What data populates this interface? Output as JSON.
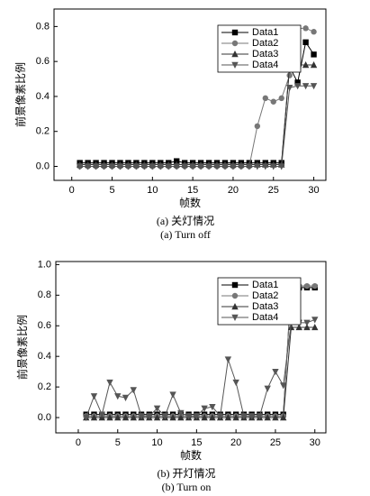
{
  "chart_data": [
    {
      "type": "line",
      "xlabel": "帧数",
      "ylabel": "前景像素比例",
      "captions": [
        "(a) 关灯情况",
        "(a) Turn off"
      ],
      "xlim": [
        -2.2,
        31.5
      ],
      "ylim": [
        -0.08,
        0.9
      ],
      "xticks": [
        0,
        5,
        10,
        15,
        20,
        25,
        30
      ],
      "yticks": [
        {
          "value": 0,
          "label": "0.0"
        },
        {
          "value": 0.2,
          "label": "0.2"
        },
        {
          "value": 0.4,
          "label": "0.4"
        },
        {
          "value": 0.6,
          "label": "0.6"
        },
        {
          "value": 0.8,
          "label": "0.8"
        }
      ],
      "legend": "upper right",
      "x": [
        1,
        2,
        3,
        4,
        5,
        6,
        7,
        8,
        9,
        10,
        11,
        12,
        13,
        14,
        15,
        16,
        17,
        18,
        19,
        20,
        21,
        22,
        23,
        24,
        25,
        26,
        27,
        28,
        29,
        30
      ],
      "series": [
        {
          "name": "Data1",
          "color": "#000000",
          "marker": "square",
          "values": [
            0.02,
            0.02,
            0.02,
            0.02,
            0.02,
            0.02,
            0.02,
            0.02,
            0.02,
            0.02,
            0.02,
            0.02,
            0.03,
            0.02,
            0.02,
            0.02,
            0.02,
            0.02,
            0.02,
            0.02,
            0.02,
            0.02,
            0.02,
            0.02,
            0.02,
            0.02,
            0.57,
            0.48,
            0.71,
            0.64
          ]
        },
        {
          "name": "Data2",
          "color": "#777777",
          "marker": "circle",
          "values": [
            0,
            0,
            0,
            0,
            0,
            0,
            0,
            0,
            0,
            0,
            0,
            0,
            0,
            0,
            0,
            0,
            0,
            0,
            0,
            0,
            0,
            0,
            0.23,
            0.39,
            0.37,
            0.39,
            0.52,
            0.79,
            0.79,
            0.77
          ]
        },
        {
          "name": "Data3",
          "color": "#333333",
          "marker": "triangle-up",
          "values": [
            0.01,
            0.01,
            0.01,
            0.01,
            0.01,
            0.01,
            0.01,
            0.01,
            0.01,
            0.01,
            0.01,
            0.01,
            0.01,
            0.01,
            0.01,
            0.01,
            0.01,
            0.01,
            0.01,
            0.01,
            0.01,
            0.01,
            0.01,
            0.01,
            0.01,
            0.01,
            0.58,
            0.58,
            0.58,
            0.58
          ]
        },
        {
          "name": "Data4",
          "color": "#555555",
          "marker": "triangle-down",
          "values": [
            0,
            0,
            0,
            0,
            0,
            0,
            0,
            0,
            0,
            0,
            0,
            0,
            0,
            0,
            0,
            0,
            0,
            0,
            0,
            0,
            0,
            0,
            0,
            0,
            0,
            0,
            0.45,
            0.46,
            0.46,
            0.46
          ]
        }
      ]
    },
    {
      "type": "line",
      "xlabel": "帧数",
      "ylabel": "前景像素比例",
      "captions": [
        "(b) 开灯情况",
        "(b) Turn on"
      ],
      "xlim": [
        -2.85,
        31.4
      ],
      "ylim": [
        -0.1,
        1.02
      ],
      "xticks": [
        0,
        5,
        10,
        15,
        20,
        25,
        30
      ],
      "yticks": [
        {
          "value": 0,
          "label": "0.0"
        },
        {
          "value": 0.2,
          "label": "0.2"
        },
        {
          "value": 0.4,
          "label": "0.4"
        },
        {
          "value": 0.6,
          "label": "0.6"
        },
        {
          "value": 0.8,
          "label": "0.8"
        },
        {
          "value": 1,
          "label": "1.0"
        }
      ],
      "legend": "upper right",
      "x": [
        1,
        2,
        3,
        4,
        5,
        6,
        7,
        8,
        9,
        10,
        11,
        12,
        13,
        14,
        15,
        16,
        17,
        18,
        19,
        20,
        21,
        22,
        23,
        24,
        25,
        26,
        27,
        28,
        29,
        30
      ],
      "series": [
        {
          "name": "Data1",
          "color": "#000000",
          "marker": "square",
          "values": [
            0.02,
            0.02,
            0.02,
            0.02,
            0.02,
            0.02,
            0.02,
            0.02,
            0.02,
            0.02,
            0.02,
            0.02,
            0.02,
            0.02,
            0.02,
            0.02,
            0.02,
            0.02,
            0.02,
            0.02,
            0.02,
            0.02,
            0.02,
            0.02,
            0.02,
            0.02,
            0.85,
            0.85,
            0.85,
            0.85
          ]
        },
        {
          "name": "Data2",
          "color": "#777777",
          "marker": "circle",
          "values": [
            0.01,
            0.01,
            0.01,
            0.01,
            0.01,
            0.01,
            0.01,
            0.01,
            0.01,
            0.01,
            0.01,
            0.01,
            0.01,
            0.01,
            0.01,
            0.01,
            0.01,
            0.01,
            0.01,
            0.01,
            0.01,
            0.01,
            0.01,
            0.01,
            0.01,
            0.01,
            0.86,
            0.86,
            0.86,
            0.86
          ]
        },
        {
          "name": "Data3",
          "color": "#333333",
          "marker": "triangle-up",
          "values": [
            0,
            0,
            0,
            0,
            0,
            0,
            0,
            0,
            0,
            0,
            0,
            0,
            0,
            0,
            0,
            0,
            0,
            0,
            0,
            0,
            0,
            0,
            0,
            0,
            0,
            0,
            0.59,
            0.59,
            0.59,
            0.59
          ]
        },
        {
          "name": "Data4",
          "color": "#555555",
          "marker": "triangle-down",
          "values": [
            0,
            0.14,
            0.02,
            0.23,
            0.14,
            0.13,
            0.18,
            0.01,
            0.01,
            0.06,
            0.01,
            0.15,
            0.03,
            0.01,
            0.01,
            0.06,
            0.07,
            0.01,
            0.38,
            0.23,
            0.01,
            0.01,
            0.01,
            0.19,
            0.3,
            0.21,
            0.62,
            0.62,
            0.62,
            0.64
          ]
        }
      ]
    }
  ]
}
